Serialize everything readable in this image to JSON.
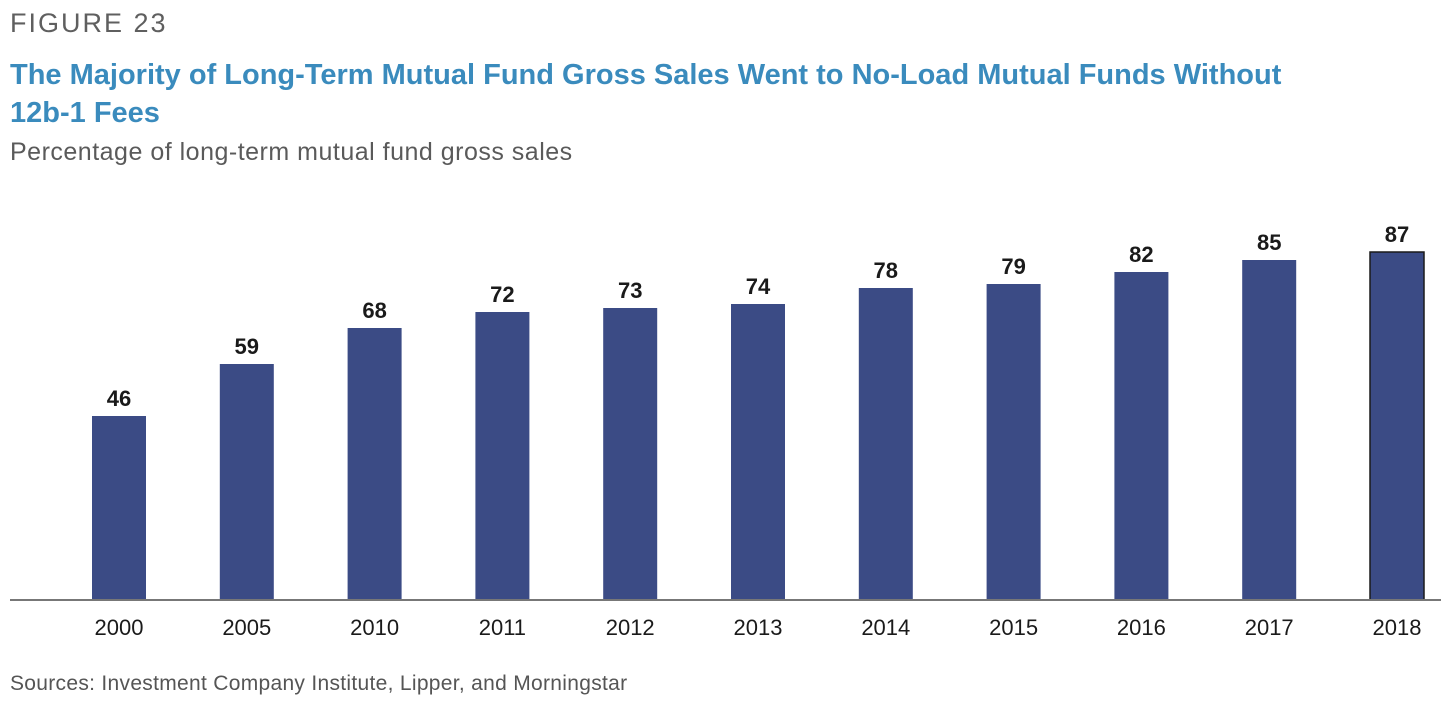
{
  "figure_label": "FIGURE 23",
  "title": "The Majority of Long-Term Mutual Fund Gross Sales Went to No-Load Mutual Funds Without 12b-1 Fees",
  "subtitle": "Percentage of long-term mutual fund gross sales",
  "source": "Sources: Investment Company Institute, Lipper, and Morningstar",
  "colors": {
    "bar": "#3b4b85",
    "axis": "#777777",
    "label": "#1a1a1a",
    "title": "#3a8bbd"
  },
  "chart_data": {
    "type": "bar",
    "categories": [
      "2000",
      "2005",
      "2010",
      "2011",
      "2012",
      "2013",
      "2014",
      "2015",
      "2016",
      "2017",
      "2018"
    ],
    "values": [
      46,
      59,
      68,
      72,
      73,
      74,
      78,
      79,
      82,
      85,
      87
    ],
    "data_labels": [
      "46",
      "59",
      "68",
      "72",
      "73",
      "74",
      "78",
      "79",
      "82",
      "85",
      "87"
    ],
    "title": "The Majority of Long-Term Mutual Fund Gross Sales Went to No-Load Mutual Funds Without 12b-1 Fees",
    "ylabel": "Percentage of long-term mutual fund gross sales",
    "xlabel": "",
    "ylim": [
      0,
      100
    ],
    "grid": false,
    "legend": "none"
  }
}
